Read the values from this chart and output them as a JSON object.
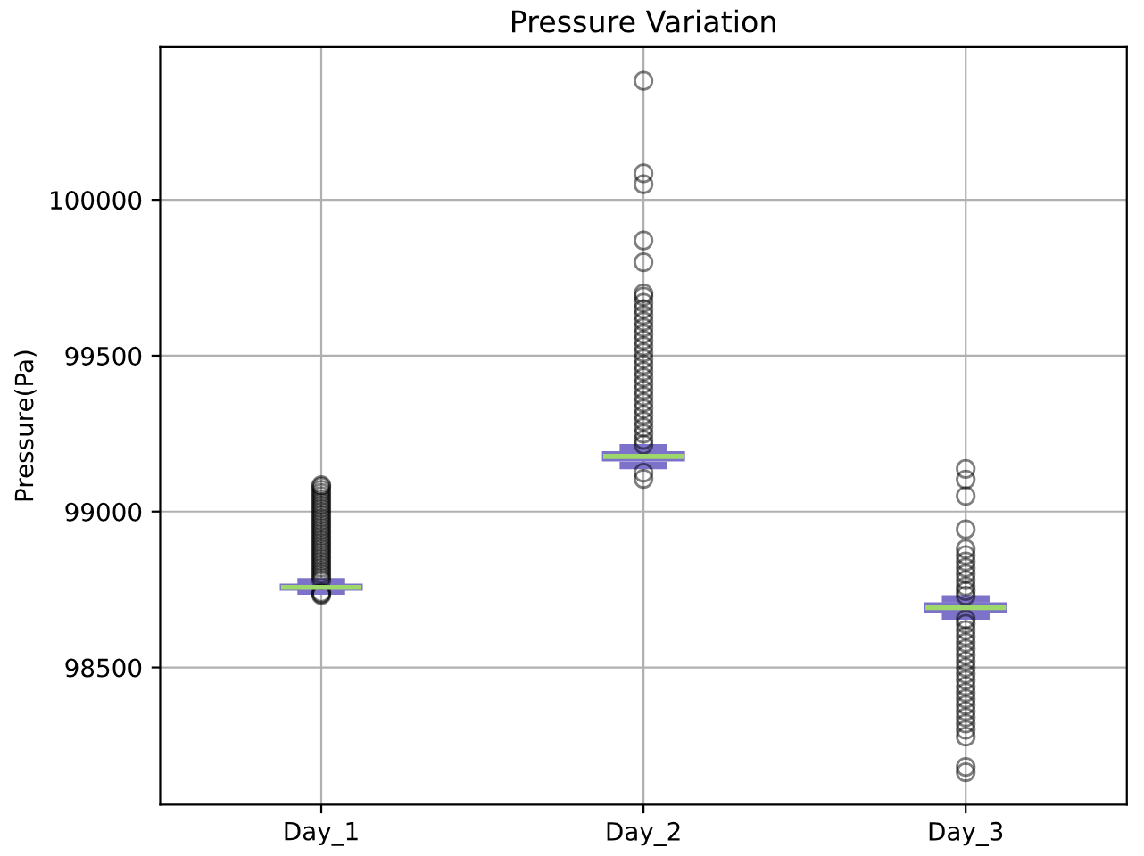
{
  "chart_data": {
    "type": "box",
    "title": "Pressure Variation",
    "ylabel": "Pressure(Pa)",
    "categories": [
      "Day_1",
      "Day_2",
      "Day_3"
    ],
    "color": "#7d72c9",
    "boxes": [
      {
        "low": 98745,
        "q1": 98750,
        "median": 98757,
        "q3": 98765,
        "high": 98775,
        "outliers": [
          98732,
          98736,
          98740,
          98780,
          98790,
          98800,
          98810,
          98820,
          98830,
          98840,
          98850,
          98860,
          98870,
          98880,
          98890,
          98900,
          98910,
          98920,
          98930,
          98940,
          98950,
          98960,
          98970,
          98980,
          98990,
          99000,
          99010,
          99020,
          99030,
          99040,
          99050,
          99060,
          99070,
          99080,
          99085
        ]
      },
      {
        "low": 99148,
        "q1": 99165,
        "median": 99177,
        "q3": 99190,
        "high": 99205,
        "outliers": [
          99105,
          99125,
          99215,
          99230,
          99250,
          99270,
          99290,
          99310,
          99330,
          99350,
          99370,
          99390,
          99410,
          99430,
          99450,
          99470,
          99490,
          99510,
          99530,
          99550,
          99570,
          99590,
          99610,
          99630,
          99650,
          99670,
          99690,
          99700,
          99800,
          99870,
          100050,
          100085,
          100382
        ]
      },
      {
        "low": 98665,
        "q1": 98680,
        "median": 98692,
        "q3": 98705,
        "high": 98720,
        "outliers": [
          98164,
          98181,
          98278,
          98300,
          98320,
          98340,
          98360,
          98380,
          98400,
          98420,
          98440,
          98460,
          98480,
          98500,
          98520,
          98540,
          98560,
          98580,
          98600,
          98620,
          98640,
          98655,
          98730,
          98745,
          98760,
          98780,
          98800,
          98820,
          98840,
          98860,
          98880,
          98943,
          99050,
          99103,
          99137
        ]
      }
    ],
    "ylim": [
      98060,
      100490
    ],
    "yticks": [
      98500,
      99000,
      99500,
      100000
    ],
    "grid": true
  }
}
